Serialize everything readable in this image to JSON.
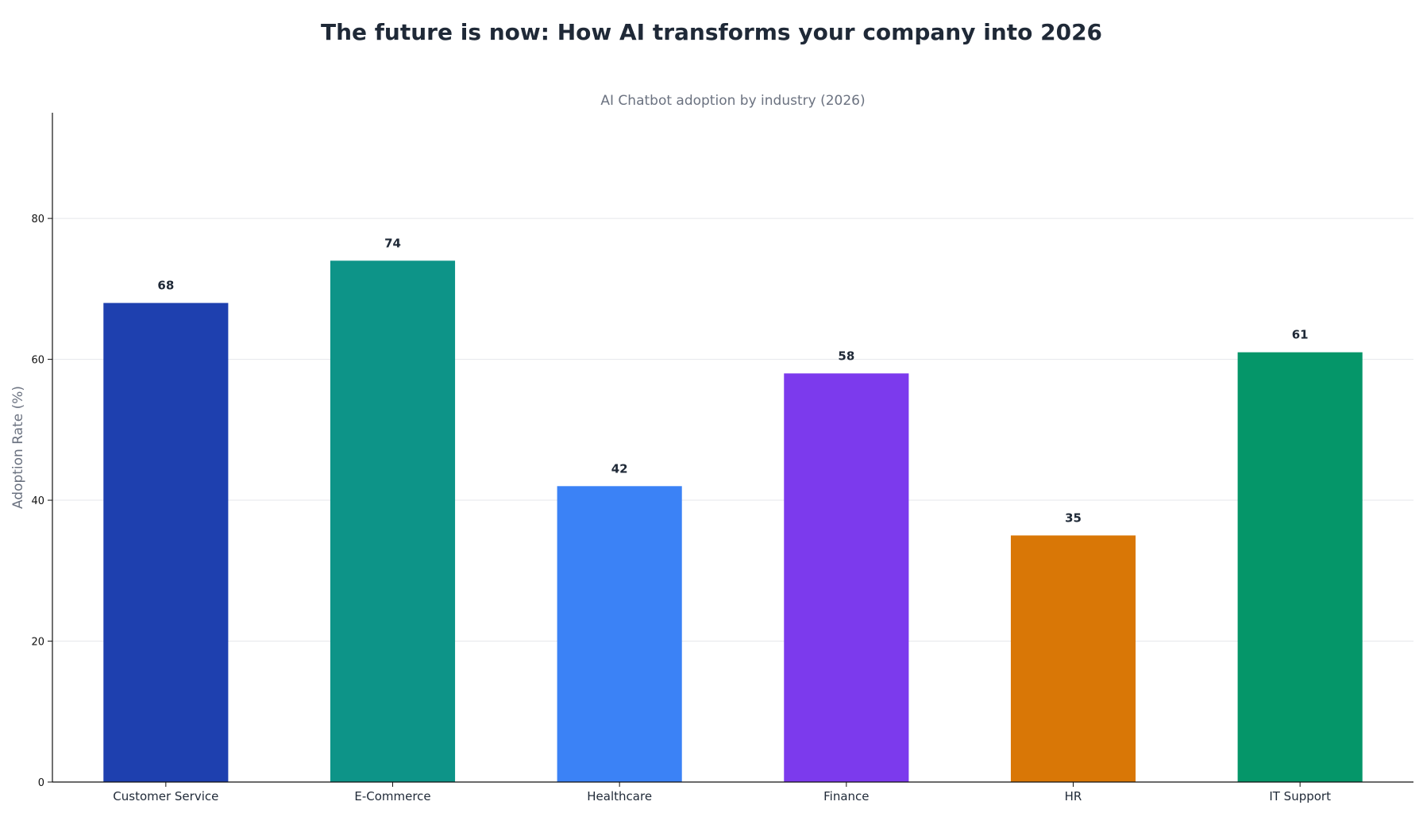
{
  "page": {
    "title": "The future is now: How AI transforms your company into 2026"
  },
  "chart_data": {
    "type": "bar",
    "title": "The future is now: How AI transforms your company into 2026",
    "subtitle": "AI Chatbot adoption by industry (2026)",
    "xlabel": "",
    "ylabel": "Adoption Rate (%)",
    "categories": [
      "Customer Service",
      "E-Commerce",
      "Healthcare",
      "Finance",
      "HR",
      "IT Support"
    ],
    "values": [
      68,
      74,
      42,
      58,
      35,
      61
    ],
    "colors": [
      "#1e40af",
      "#0d9488",
      "#3b82f6",
      "#7c3aed",
      "#d97706",
      "#059669"
    ],
    "ylim": [
      0,
      95
    ],
    "yticks": [
      0,
      20,
      40,
      60,
      80
    ],
    "grid": "horizontal",
    "legend": "none"
  }
}
